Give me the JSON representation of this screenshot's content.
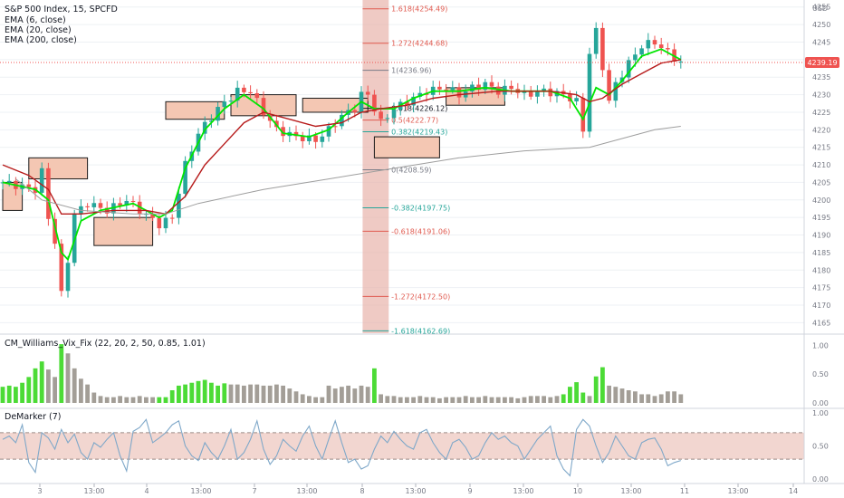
{
  "instrument": "S&P 500 Index, 15, SPCFD",
  "overlays": [
    "EMA (6, close)",
    "EMA (20, close)",
    "EMA (200, close)"
  ],
  "currency": "USD",
  "last_price": "4239.19",
  "colors": {
    "up": "#26a69a",
    "down": "#ef5350",
    "ema6": "#00e600",
    "ema20": "#b71c1c",
    "ema200": "#9e9e9e",
    "zone_fill": "#f4c7b3",
    "fib_band": "#e8b3ab",
    "grid": "#eef1f4",
    "axis_text": "#787b86",
    "text": "#131722",
    "vix_green": "#4cdb36",
    "vix_grey": "#a39e97",
    "dm_band": "#f2d6d0",
    "dm_line": "#7fa8c9"
  },
  "chart_data": [
    {
      "type": "candlestick",
      "title": "S&P 500 Index, 15, SPCFD",
      "ylabel": "USD",
      "ylim": [
        4162,
        4257
      ],
      "yticks": [
        4165,
        4170,
        4175,
        4180,
        4185,
        4190,
        4195,
        4200,
        4205,
        4210,
        4215,
        4220,
        4225,
        4230,
        4235,
        4240,
        4245,
        4250,
        4255
      ],
      "xticks": [
        "3",
        "13:00",
        "4",
        "13:00",
        "7",
        "13:00",
        "8",
        "13:00",
        "9",
        "13:00",
        "10",
        "13:00",
        "11",
        "13:00",
        "14"
      ],
      "candle_count": 105,
      "anchors": [
        [
          0,
          4205
        ],
        [
          5,
          4203
        ],
        [
          6,
          4208
        ],
        [
          7,
          4195
        ],
        [
          8,
          4188
        ],
        [
          9,
          4173
        ],
        [
          10,
          4183
        ],
        [
          11,
          4196
        ],
        [
          13,
          4199
        ],
        [
          16,
          4197
        ],
        [
          19,
          4200
        ],
        [
          21,
          4197
        ],
        [
          24,
          4193
        ],
        [
          26,
          4195
        ],
        [
          28,
          4210
        ],
        [
          30,
          4219
        ],
        [
          33,
          4226
        ],
        [
          36,
          4231
        ],
        [
          38,
          4231
        ],
        [
          40,
          4225
        ],
        [
          42,
          4220
        ],
        [
          45,
          4218
        ],
        [
          48,
          4217
        ],
        [
          50,
          4220
        ],
        [
          52,
          4224
        ],
        [
          54,
          4226
        ],
        [
          55,
          4230
        ],
        [
          56,
          4230
        ],
        [
          58,
          4222
        ],
        [
          60,
          4226
        ],
        [
          63,
          4229
        ],
        [
          65,
          4231
        ],
        [
          68,
          4232
        ],
        [
          70,
          4230
        ],
        [
          72,
          4232
        ],
        [
          74,
          4233
        ],
        [
          76,
          4231
        ],
        [
          78,
          4232
        ],
        [
          80,
          4230
        ],
        [
          83,
          4231
        ],
        [
          86,
          4230
        ],
        [
          88,
          4228
        ],
        [
          89,
          4220
        ],
        [
          90,
          4242
        ],
        [
          91,
          4248
        ],
        [
          92,
          4238
        ],
        [
          93,
          4228
        ],
        [
          94,
          4233
        ],
        [
          96,
          4239
        ],
        [
          98,
          4244
        ],
        [
          100,
          4245
        ],
        [
          102,
          4242
        ],
        [
          104,
          4239
        ]
      ],
      "series": [
        {
          "name": "EMA (6, close)",
          "values": [
            [
              0,
              4205
            ],
            [
              5,
              4203
            ],
            [
              7,
              4200
            ],
            [
              9,
              4185
            ],
            [
              10,
              4183
            ],
            [
              12,
              4194
            ],
            [
              15,
              4197
            ],
            [
              20,
              4199
            ],
            [
              24,
              4195
            ],
            [
              26,
              4197
            ],
            [
              28,
              4209
            ],
            [
              31,
              4220
            ],
            [
              34,
              4226
            ],
            [
              37,
              4230
            ],
            [
              40,
              4226
            ],
            [
              43,
              4219
            ],
            [
              47,
              4218
            ],
            [
              50,
              4220
            ],
            [
              53,
              4225
            ],
            [
              55,
              4228
            ],
            [
              57,
              4226
            ],
            [
              60,
              4226
            ],
            [
              63,
              4229
            ],
            [
              66,
              4231
            ],
            [
              70,
              4231
            ],
            [
              74,
              4232
            ],
            [
              78,
              4231
            ],
            [
              84,
              4231
            ],
            [
              87,
              4229
            ],
            [
              89,
              4223
            ],
            [
              91,
              4232
            ],
            [
              93,
              4230
            ],
            [
              95,
              4234
            ],
            [
              98,
              4241
            ],
            [
              101,
              4243
            ],
            [
              104,
              4240
            ]
          ]
        },
        {
          "name": "EMA (20, close)",
          "values": [
            [
              0,
              4210
            ],
            [
              4,
              4207
            ],
            [
              7,
              4203
            ],
            [
              9,
              4196
            ],
            [
              12,
              4196
            ],
            [
              17,
              4197
            ],
            [
              22,
              4197
            ],
            [
              25,
              4196
            ],
            [
              28,
              4201
            ],
            [
              31,
              4210
            ],
            [
              34,
              4216
            ],
            [
              37,
              4222
            ],
            [
              40,
              4225
            ],
            [
              44,
              4223
            ],
            [
              48,
              4221
            ],
            [
              52,
              4222
            ],
            [
              55,
              4225
            ],
            [
              58,
              4226
            ],
            [
              62,
              4227
            ],
            [
              66,
              4229
            ],
            [
              70,
              4230
            ],
            [
              76,
              4231
            ],
            [
              84,
              4231
            ],
            [
              88,
              4230
            ],
            [
              90,
              4228
            ],
            [
              92,
              4229
            ],
            [
              95,
              4233
            ],
            [
              98,
              4236
            ],
            [
              101,
              4239
            ],
            [
              104,
              4240
            ]
          ]
        },
        {
          "name": "EMA (200, close)",
          "values": [
            [
              2,
              4206
            ],
            [
              6,
              4200
            ],
            [
              12,
              4197
            ],
            [
              20,
              4196
            ],
            [
              25,
              4196
            ],
            [
              30,
              4199
            ],
            [
              40,
              4203
            ],
            [
              50,
              4206
            ],
            [
              60,
              4209
            ],
            [
              70,
              4212
            ],
            [
              80,
              4214
            ],
            [
              90,
              4215
            ],
            [
              100,
              4220
            ],
            [
              104,
              4221
            ]
          ]
        }
      ],
      "fib_levels": [
        {
          "label": "1.618(4254.49)",
          "value": 4254.49
        },
        {
          "label": "1.272(4244.68)",
          "value": 4244.68
        },
        {
          "label": "1(4236.96)",
          "value": 4236.96
        },
        {
          "label": "0.618(4226.12)",
          "value": 4226.12
        },
        {
          "label": "0.5(4222.77)",
          "value": 4222.77
        },
        {
          "label": "0.382(4219.43)",
          "value": 4219.43
        },
        {
          "label": "0(4208.59)",
          "value": 4208.59
        },
        {
          "label": "-0.382(4197.75)",
          "value": 4197.75
        },
        {
          "label": "-0.618(4191.06)",
          "value": 4191.06
        },
        {
          "label": "-1.272(4172.50)",
          "value": 4172.5
        },
        {
          "label": "-1.618(4162.69)",
          "value": 4162.69
        }
      ],
      "zones": [
        {
          "x": [
            0,
            3
          ],
          "y": [
            4197,
            4205
          ]
        },
        {
          "x": [
            4,
            13
          ],
          "y": [
            4206,
            4212
          ]
        },
        {
          "x": [
            14,
            23
          ],
          "y": [
            4187,
            4195
          ]
        },
        {
          "x": [
            25,
            34
          ],
          "y": [
            4223,
            4228
          ]
        },
        {
          "x": [
            35,
            45
          ],
          "y": [
            4224,
            4230
          ]
        },
        {
          "x": [
            46,
            56
          ],
          "y": [
            4225,
            4229
          ]
        },
        {
          "x": [
            57,
            67
          ],
          "y": [
            4212,
            4218
          ]
        },
        {
          "x": [
            68,
            77
          ],
          "y": [
            4227,
            4232
          ]
        }
      ]
    },
    {
      "type": "bar",
      "title": "CM_Williams_Vix_Fix (22, 20, 2, 50, 0.85, 1.01)",
      "ylim": [
        0,
        1.1
      ],
      "yticks": [
        "0.00",
        "0.50",
        "1.00"
      ],
      "values": [
        0.28,
        0.3,
        0.28,
        0.35,
        0.45,
        0.6,
        0.72,
        0.58,
        0.45,
        1.02,
        0.86,
        0.6,
        0.42,
        0.32,
        0.18,
        0.12,
        0.1,
        0.1,
        0.12,
        0.1,
        0.1,
        0.12,
        0.1,
        0.1,
        0.1,
        0.1,
        0.22,
        0.3,
        0.32,
        0.35,
        0.38,
        0.4,
        0.35,
        0.3,
        0.34,
        0.32,
        0.32,
        0.3,
        0.32,
        0.32,
        0.3,
        0.3,
        0.32,
        0.3,
        0.25,
        0.2,
        0.15,
        0.12,
        0.1,
        0.1,
        0.3,
        0.25,
        0.28,
        0.3,
        0.25,
        0.3,
        0.28,
        0.6,
        0.15,
        0.12,
        0.12,
        0.1,
        0.1,
        0.1,
        0.12,
        0.1,
        0.1,
        0.08,
        0.1,
        0.1,
        0.1,
        0.12,
        0.1,
        0.1,
        0.12,
        0.1,
        0.1,
        0.1,
        0.1,
        0.08,
        0.1,
        0.12,
        0.12,
        0.12,
        0.1,
        0.12,
        0.15,
        0.28,
        0.36,
        0.18,
        0.12,
        0.46,
        0.62,
        0.3,
        0.28,
        0.25,
        0.22,
        0.2,
        0.15,
        0.15,
        0.12,
        0.15,
        0.2,
        0.2,
        0.15
      ],
      "green": [
        0,
        1,
        2,
        3,
        4,
        5,
        6,
        9,
        24,
        25,
        26,
        27,
        28,
        29,
        30,
        31,
        32,
        33,
        34,
        57,
        86,
        87,
        88,
        89,
        91,
        92
      ],
      "dashed_level": 0.5
    },
    {
      "type": "line",
      "title": "DeMarker (7)",
      "ylim": [
        0,
        1
      ],
      "yticks": [
        "0.00",
        "0.50",
        "1.00"
      ],
      "band": [
        0.3,
        0.7
      ],
      "values": [
        0.6,
        0.65,
        0.55,
        0.82,
        0.25,
        0.1,
        0.7,
        0.62,
        0.45,
        0.75,
        0.55,
        0.68,
        0.4,
        0.3,
        0.55,
        0.48,
        0.6,
        0.7,
        0.35,
        0.12,
        0.72,
        0.78,
        0.9,
        0.55,
        0.62,
        0.7,
        0.82,
        0.88,
        0.5,
        0.35,
        0.28,
        0.55,
        0.4,
        0.3,
        0.5,
        0.75,
        0.3,
        0.4,
        0.6,
        0.88,
        0.45,
        0.22,
        0.35,
        0.6,
        0.5,
        0.42,
        0.65,
        0.8,
        0.5,
        0.3,
        0.6,
        0.88,
        0.55,
        0.25,
        0.3,
        0.15,
        0.2,
        0.45,
        0.65,
        0.55,
        0.72,
        0.6,
        0.5,
        0.45,
        0.7,
        0.75,
        0.55,
        0.4,
        0.3,
        0.55,
        0.6,
        0.48,
        0.3,
        0.35,
        0.55,
        0.7,
        0.6,
        0.65,
        0.55,
        0.5,
        0.3,
        0.45,
        0.6,
        0.7,
        0.8,
        0.35,
        0.15,
        0.05,
        0.75,
        0.9,
        0.8,
        0.5,
        0.25,
        0.4,
        0.65,
        0.5,
        0.35,
        0.3,
        0.55,
        0.6,
        0.62,
        0.45,
        0.2,
        0.25,
        0.28
      ]
    }
  ]
}
